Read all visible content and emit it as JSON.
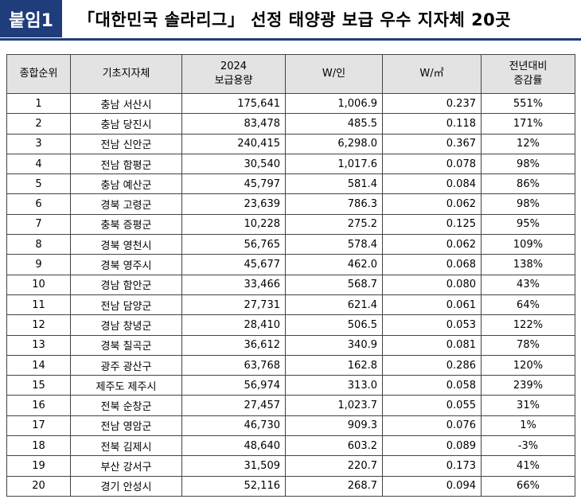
{
  "header": {
    "badge": "붙임1",
    "title": "「대한민국 솔라리그」 선정 태양광 보급 우수 지자체 20곳"
  },
  "table": {
    "columns": [
      "종합순위",
      "기초지자체",
      "2024\n보급용량",
      "W/인",
      "W/㎡",
      "전년대비\n증감률"
    ],
    "rows": [
      [
        "1",
        "충남 서산시",
        "175,641",
        "1,006.9",
        "0.237",
        "551%"
      ],
      [
        "2",
        "충남 당진시",
        "83,478",
        "485.5",
        "0.118",
        "171%"
      ],
      [
        "3",
        "전남 신안군",
        "240,415",
        "6,298.0",
        "0.367",
        "12%"
      ],
      [
        "4",
        "전남 함평군",
        "30,540",
        "1,017.6",
        "0.078",
        "98%"
      ],
      [
        "5",
        "충남 예산군",
        "45,797",
        "581.4",
        "0.084",
        "86%"
      ],
      [
        "6",
        "경북 고령군",
        "23,639",
        "786.3",
        "0.062",
        "98%"
      ],
      [
        "7",
        "충북 증평군",
        "10,228",
        "275.2",
        "0.125",
        "95%"
      ],
      [
        "8",
        "경북 영천시",
        "56,765",
        "578.4",
        "0.062",
        "109%"
      ],
      [
        "9",
        "경북 영주시",
        "45,677",
        "462.0",
        "0.068",
        "138%"
      ],
      [
        "10",
        "경남 함안군",
        "33,466",
        "568.7",
        "0.080",
        "43%"
      ],
      [
        "11",
        "전남 담양군",
        "27,731",
        "621.4",
        "0.061",
        "64%"
      ],
      [
        "12",
        "경남 창녕군",
        "28,410",
        "506.5",
        "0.053",
        "122%"
      ],
      [
        "13",
        "경북 칠곡군",
        "36,612",
        "340.9",
        "0.081",
        "78%"
      ],
      [
        "14",
        "광주 광산구",
        "63,768",
        "162.8",
        "0.286",
        "120%"
      ],
      [
        "15",
        "제주도 제주시",
        "56,974",
        "313.0",
        "0.058",
        "239%"
      ],
      [
        "16",
        "전북 순창군",
        "27,457",
        "1,023.7",
        "0.055",
        "31%"
      ],
      [
        "17",
        "전남 영암군",
        "46,730",
        "909.3",
        "0.076",
        "1%"
      ],
      [
        "18",
        "전북 김제시",
        "48,640",
        "603.2",
        "0.089",
        "-3%"
      ],
      [
        "19",
        "부산 강서구",
        "31,509",
        "220.7",
        "0.173",
        "41%"
      ],
      [
        "20",
        "경기 안성시",
        "52,116",
        "268.7",
        "0.094",
        "66%"
      ]
    ]
  }
}
